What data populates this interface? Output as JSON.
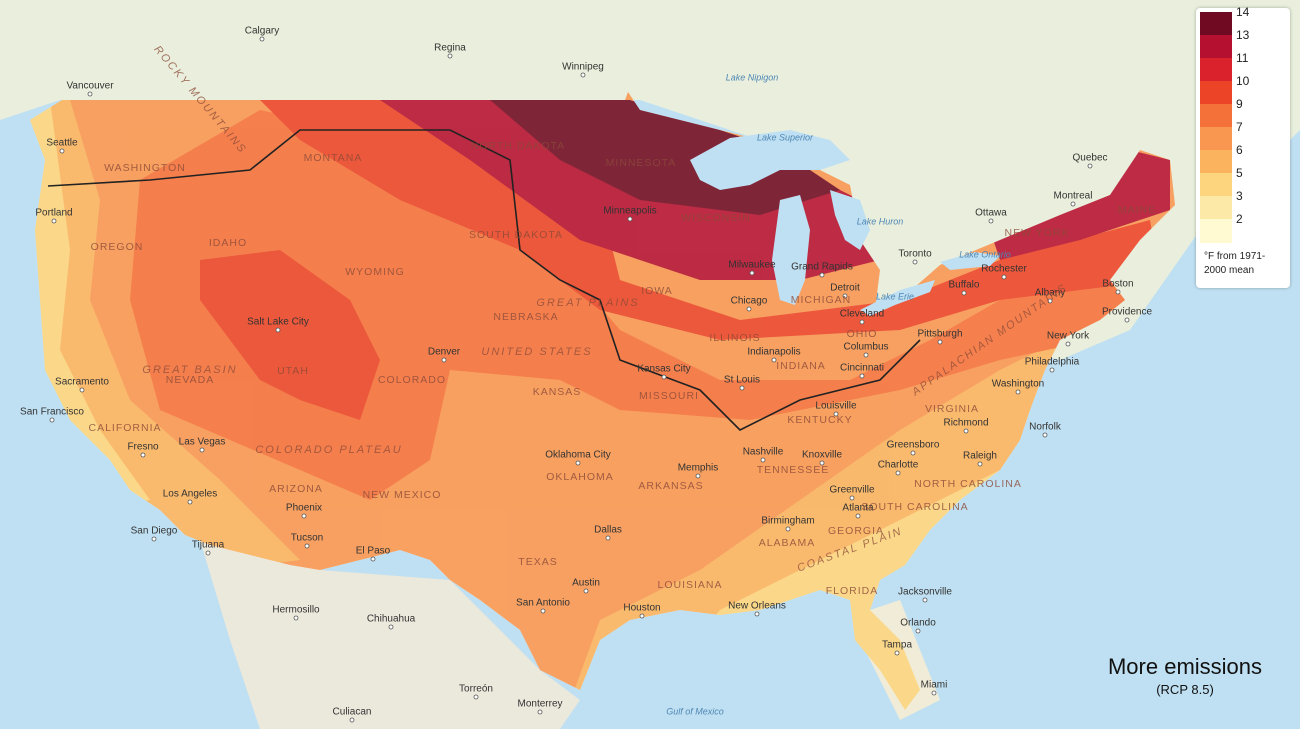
{
  "map": {
    "legend": {
      "values": [
        14,
        13,
        11,
        10,
        9,
        7,
        6,
        5,
        3,
        2
      ],
      "colors": [
        "#6f0a22",
        "#b5102f",
        "#d9222b",
        "#ec4426",
        "#f5713a",
        "#f99650",
        "#fbb35e",
        "#fcd57e",
        "#fde9a7",
        "#fffad2"
      ],
      "note": "°F from 1971-2000 mean"
    },
    "caption": {
      "title": "More emissions",
      "subtitle": "(RCP 8.5)"
    },
    "cities": [
      "Calgary",
      "Regina",
      "Winnipeg",
      "Vancouver",
      "Seattle",
      "Portland",
      "Quebec",
      "Montreal",
      "Ottawa",
      "Toronto",
      "Rochester",
      "Buffalo",
      "Albany",
      "Boston",
      "Providence",
      "New York",
      "Philadelphia",
      "Pittsburgh",
      "Washington",
      "Richmond",
      "Norfolk",
      "Raleigh",
      "Greensboro",
      "Charlotte",
      "Greenville",
      "Atlanta",
      "Birmingham",
      "Jacksonville",
      "Orlando",
      "Tampa",
      "Miami",
      "New Orleans",
      "Houston",
      "San Antonio",
      "Austin",
      "Dallas",
      "Oklahoma City",
      "Memphis",
      "Nashville",
      "Knoxville",
      "Louisville",
      "Cincinnati",
      "Columbus",
      "Indianapolis",
      "St Louis",
      "Kansas City",
      "Chicago",
      "Milwaukee",
      "Minneapolis",
      "Detroit",
      "Cleveland",
      "Grand Rapids",
      "Denver",
      "Salt Lake City",
      "Las Vegas",
      "Los Angeles",
      "San Diego",
      "Tijuana",
      "Phoenix",
      "Tucson",
      "El Paso",
      "Fresno",
      "San Francisco",
      "Sacramento",
      "Hermosillo",
      "Chihuahua",
      "Culiacan",
      "Torreón",
      "Monterrey"
    ],
    "states": [
      "WASHINGTON",
      "OREGON",
      "CALIFORNIA",
      "NEVADA",
      "IDAHO",
      "MONTANA",
      "WYOMING",
      "UTAH",
      "COLORADO",
      "ARIZONA",
      "NEW MEXICO",
      "NORTH DAKOTA",
      "SOUTH DAKOTA",
      "NEBRASKA",
      "KANSAS",
      "OKLAHOMA",
      "TEXAS",
      "MINNESOTA",
      "WISCONSIN",
      "IOWA",
      "MISSOURI",
      "ARKANSAS",
      "LOUISIANA",
      "ILLINOIS",
      "INDIANA",
      "MICHIGAN",
      "OHIO",
      "KENTUCKY",
      "TENNESSEE",
      "ALABAMA",
      "GEORGIA",
      "FLORIDA",
      "SOUTH CAROLINA",
      "NORTH CAROLINA",
      "VIRGINIA",
      "NEW YORK",
      "MAINE"
    ],
    "regions": [
      "UNITED STATES",
      "GREAT PLAINS",
      "GREAT BASIN",
      "COLORADO PLATEAU",
      "ROCKY MOUNTAINS",
      "APPALACHIAN MOUNTAINS",
      "COASTAL PLAIN"
    ],
    "water": [
      "Lake Superior",
      "Lake Huron",
      "Lake Ontario",
      "Lake Erie",
      "Lake Nipigon",
      "Gulf of Mexico"
    ]
  }
}
